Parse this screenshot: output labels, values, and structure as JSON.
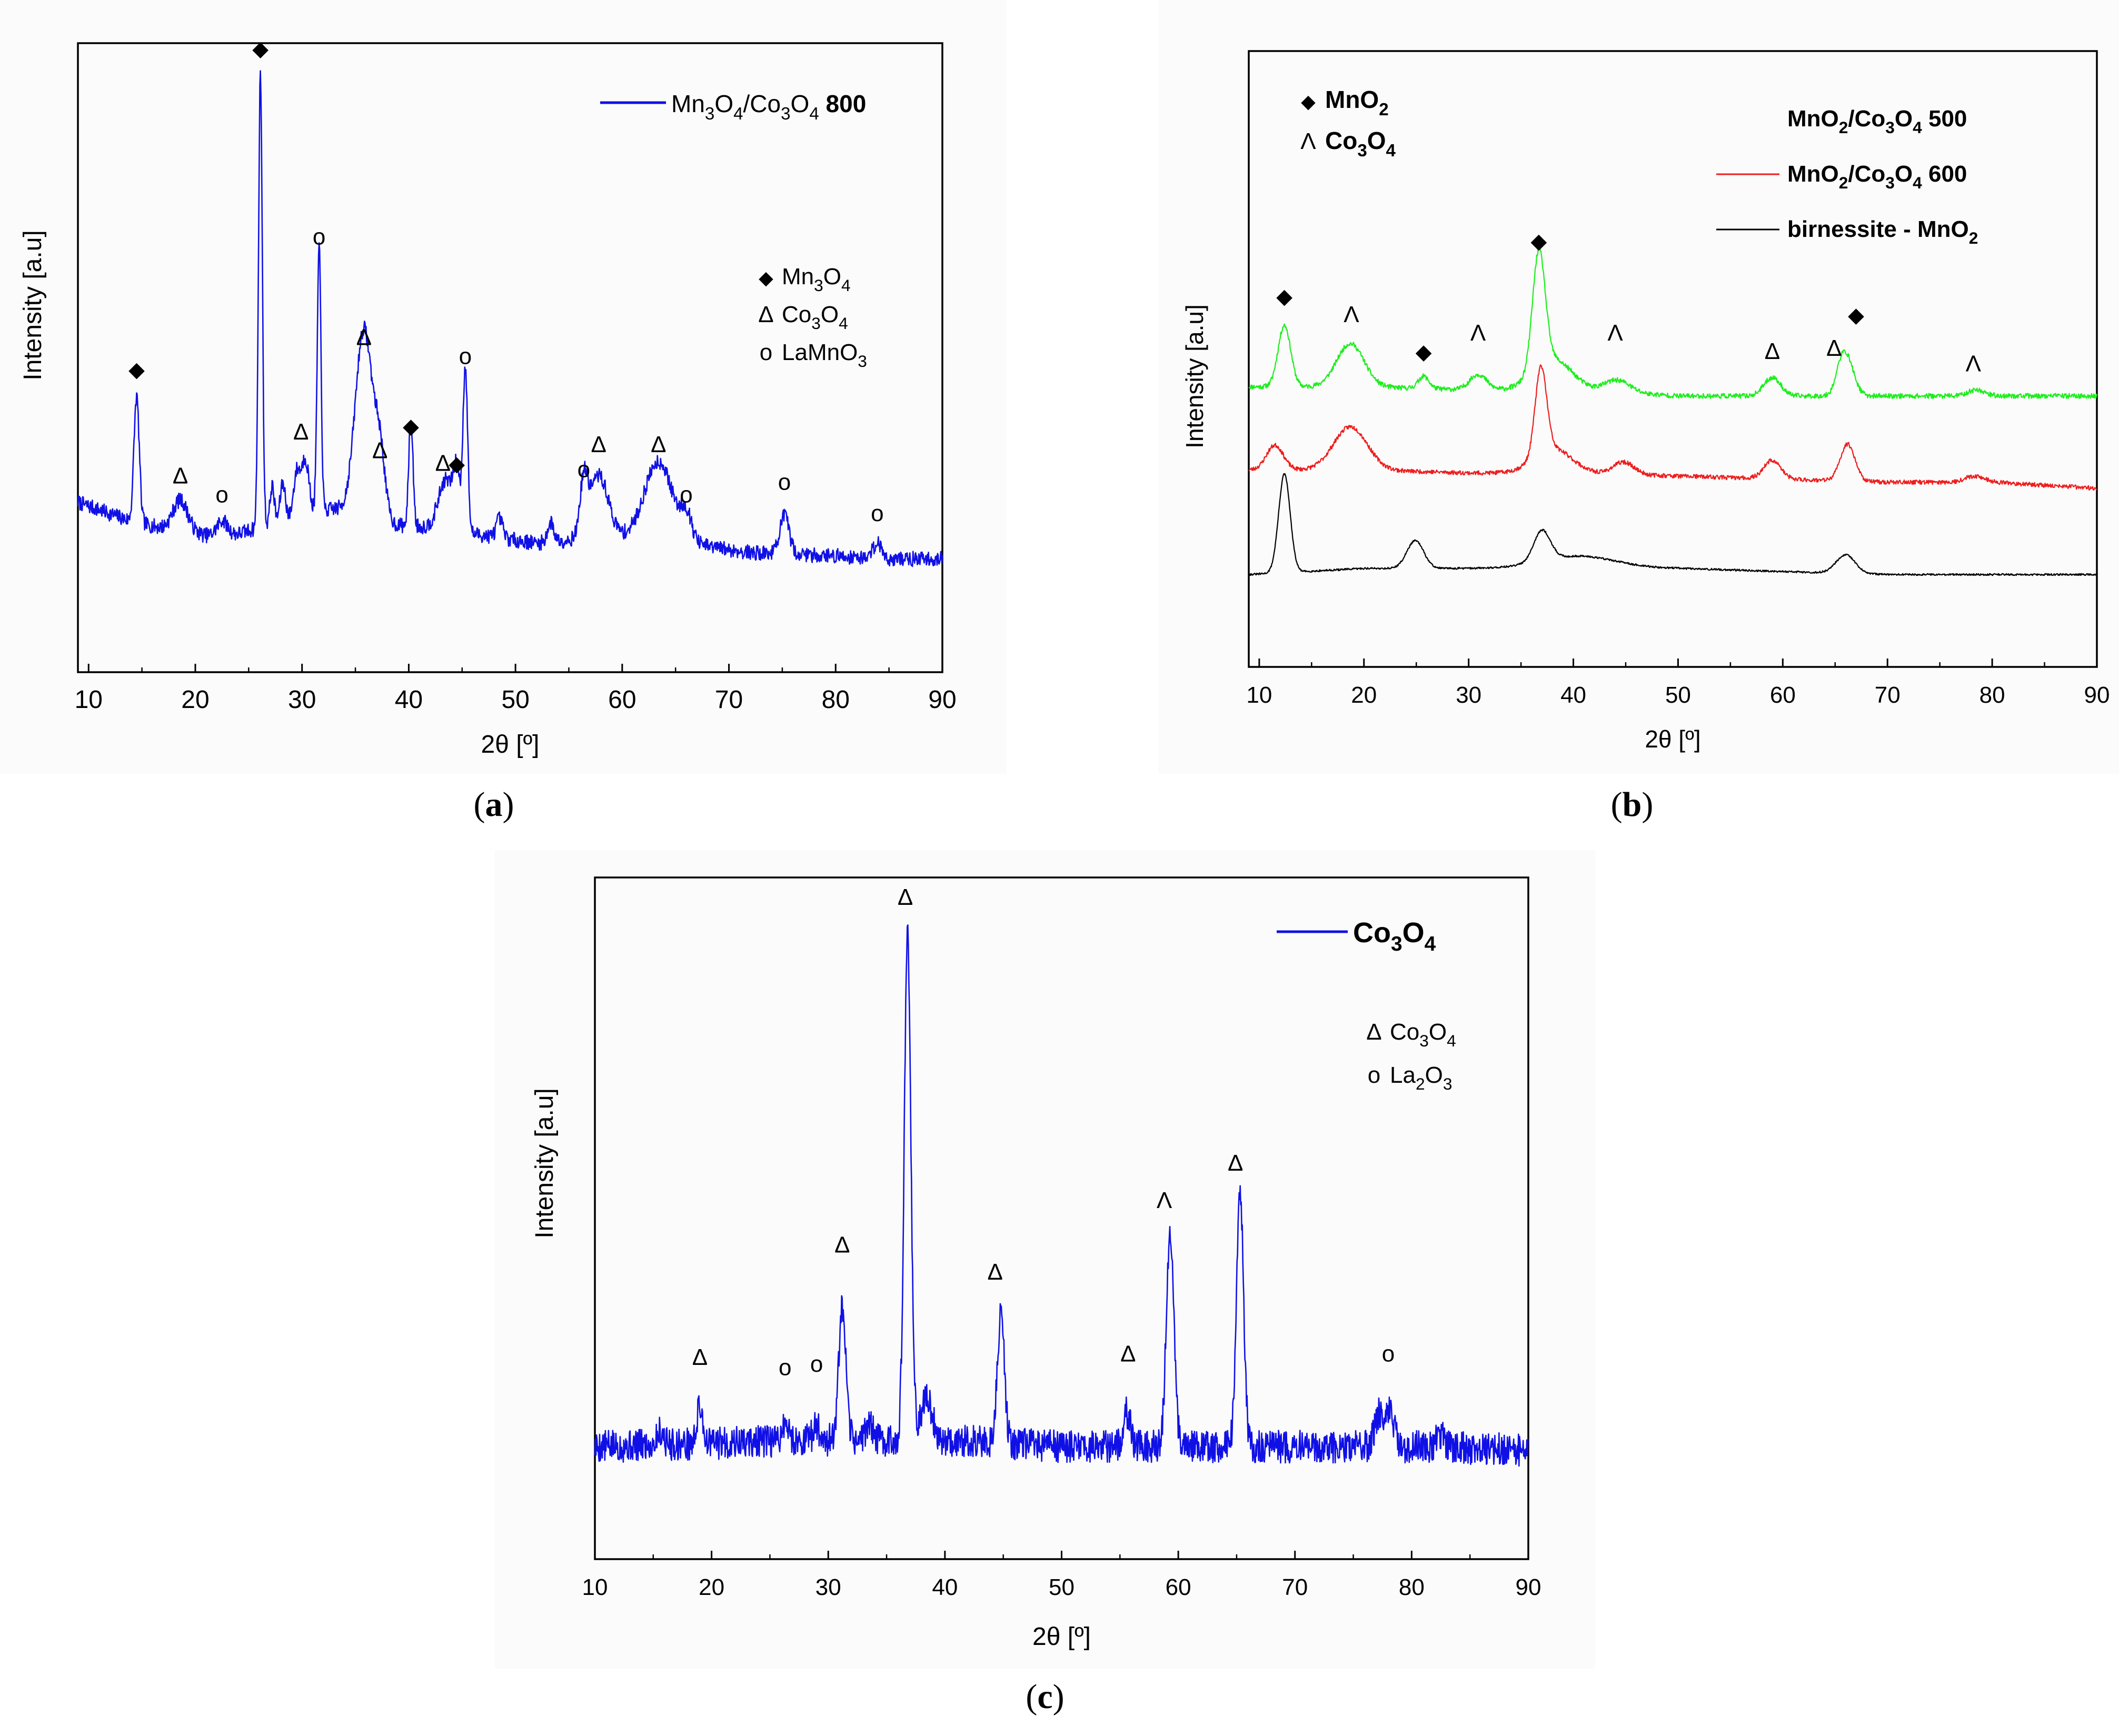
{
  "chart_data": [
    {
      "id": "a",
      "type": "line",
      "panel_label": "a",
      "xlabel": "2θ [º]",
      "ylabel": "Intensity [a.u]",
      "xlim": [
        9,
        90
      ],
      "ylim": [
        0,
        100
      ],
      "xticks": [
        10,
        20,
        30,
        40,
        50,
        60,
        70,
        80,
        90
      ],
      "colors": {
        "series": "#1010e6",
        "axis": "#000000"
      },
      "legend": {
        "position": "top-right",
        "entries": [
          {
            "sub": [
              "Mn",
              "3",
              "O",
              "4",
              "/Co",
              "3",
              "O",
              "4"
            ],
            "bold": " 800",
            "color": "#1010e6"
          }
        ],
        "markers": [
          {
            "symbol": "◆",
            "sub": [
              "Mn",
              "3",
              "O",
              "4"
            ]
          },
          {
            "symbol": "Δ",
            "sub": [
              "Co",
              "3",
              "O",
              "4"
            ]
          },
          {
            "symbol": "o",
            "sub": [
              "LaMnO",
              "3"
            ]
          }
        ]
      },
      "series": [
        {
          "name": "Mn3O4/Co3O4 800",
          "baseline": [
            [
              9,
              27
            ],
            [
              14,
              24
            ],
            [
              18,
              22.5
            ],
            [
              22,
              21.5
            ],
            [
              24,
              22
            ],
            [
              28,
              24
            ],
            [
              33,
              26
            ],
            [
              38,
              23.5
            ],
            [
              42,
              23
            ],
            [
              48,
              21.5
            ],
            [
              52,
              20.5
            ],
            [
              55,
              21
            ],
            [
              60,
              21.5
            ],
            [
              64,
              21.5
            ],
            [
              68,
              20
            ],
            [
              72,
              19
            ],
            [
              80,
              18.5
            ],
            [
              85,
              18
            ],
            [
              90,
              18
            ]
          ],
          "peaks": [
            [
              14.5,
              20,
              0.25
            ],
            [
              18.6,
              5,
              0.7
            ],
            [
              22.5,
              2.5,
              0.5
            ],
            [
              26.1,
              72,
              0.18
            ],
            [
              27.2,
              6,
              0.2
            ],
            [
              28.2,
              6,
              0.25
            ],
            [
              29.5,
              7,
              0.3
            ],
            [
              30.3,
              9,
              0.35
            ],
            [
              31.6,
              42,
              0.18
            ],
            [
              35.8,
              30,
              0.8
            ],
            [
              37.3,
              10,
              0.5
            ],
            [
              40.2,
              17,
              0.2
            ],
            [
              43.5,
              8,
              0.7
            ],
            [
              44.5,
              8,
              0.3
            ],
            [
              45.3,
              26,
              0.22
            ],
            [
              48.5,
              3,
              0.3
            ],
            [
              53.3,
              3,
              0.3
            ],
            [
              56.4,
              8,
              0.35
            ],
            [
              57.8,
              10,
              0.9
            ],
            [
              63.4,
              12,
              1.3
            ],
            [
              66.0,
              4,
              0.5
            ],
            [
              75.2,
              6,
              0.45
            ],
            [
              83.9,
              2.5,
              0.4
            ]
          ],
          "noise": 1.2,
          "seed": 7,
          "step": 0.05
        }
      ],
      "annotations": [
        {
          "symbol": "◆",
          "x": 14.5,
          "y": 47
        },
        {
          "symbol": "Δ",
          "x": 18.6,
          "y": 30
        },
        {
          "symbol": "o",
          "x": 22.5,
          "y": 27
        },
        {
          "symbol": "◆",
          "x": 26.1,
          "y": 98
        },
        {
          "symbol": "Δ",
          "x": 29.9,
          "y": 37
        },
        {
          "symbol": "o",
          "x": 31.6,
          "y": 68
        },
        {
          "symbol": "Δ",
          "x": 35.8,
          "y": 52
        },
        {
          "symbol": "Δ",
          "x": 37.3,
          "y": 34
        },
        {
          "symbol": "◆",
          "x": 40.2,
          "y": 38
        },
        {
          "symbol": "Δ",
          "x": 43.2,
          "y": 32
        },
        {
          "symbol": "◆",
          "x": 44.5,
          "y": 32
        },
        {
          "symbol": "o",
          "x": 45.3,
          "y": 49
        },
        {
          "symbol": "o",
          "x": 56.4,
          "y": 31
        },
        {
          "symbol": "Δ",
          "x": 57.8,
          "y": 35
        },
        {
          "symbol": "Δ",
          "x": 63.4,
          "y": 35
        },
        {
          "symbol": "o",
          "x": 66.0,
          "y": 27
        },
        {
          "symbol": "o",
          "x": 75.2,
          "y": 29
        },
        {
          "symbol": "o",
          "x": 83.9,
          "y": 24
        }
      ]
    },
    {
      "id": "b",
      "type": "line",
      "panel_label": "b",
      "xlabel": "2θ [º]",
      "ylabel": "Intensity [a.u]",
      "xlim": [
        9,
        90
      ],
      "ylim": [
        0,
        100
      ],
      "xticks": [
        10,
        20,
        30,
        40,
        50,
        60,
        70,
        80,
        90
      ],
      "colors": {
        "axis": "#000000"
      },
      "legend": {
        "position": "top-right",
        "markers": [
          {
            "symbol": "◆",
            "sub": [
              "MnO",
              "2"
            ]
          },
          {
            "symbol": "Λ",
            "sub": [
              "Co",
              "3",
              "O",
              "4"
            ]
          }
        ],
        "entries": [
          {
            "sub": [
              "MnO",
              "2",
              "/Co",
              "3",
              "O",
              "4",
              " 500"
            ],
            "color": "#1cee1c",
            "line": false
          },
          {
            "sub": [
              "MnO",
              "2",
              "/Co",
              "3",
              "O",
              "4",
              " 600"
            ],
            "color": "#ee1c1c",
            "line": true
          },
          {
            "sub": [
              "birnessite - MnO",
              "2"
            ],
            "color": "#000000",
            "line": true
          }
        ]
      },
      "series": [
        {
          "name": "MnO2/Co3O4 500",
          "color": "#1cee1c",
          "baseline": [
            [
              9,
              45.5
            ],
            [
              20,
              45.5
            ],
            [
              30,
              45
            ],
            [
              40,
              45
            ],
            [
              50,
              44
            ],
            [
              60,
              44
            ],
            [
              70,
              44
            ],
            [
              80,
              44
            ],
            [
              90,
              44
            ]
          ],
          "peaks": [
            [
              12.4,
              10,
              0.6
            ],
            [
              18.7,
              7,
              1.3
            ],
            [
              25.7,
              2,
              0.5
            ],
            [
              30.9,
              2.5,
              0.8
            ],
            [
              36.7,
              19,
              0.6
            ],
            [
              38.0,
              5,
              1.8
            ],
            [
              44.2,
              2,
              1.2
            ],
            [
              59.0,
              3,
              0.8
            ],
            [
              65.5,
              2,
              0.5
            ],
            [
              66.1,
              6,
              0.7
            ],
            [
              78.5,
              1,
              0.8
            ]
          ],
          "noise": 0.4,
          "seed": 11,
          "step": 0.05
        },
        {
          "name": "MnO2/Co3O4 600",
          "color": "#ee1c1c",
          "baseline": [
            [
              9,
              32
            ],
            [
              20,
              32
            ],
            [
              30,
              31.5
            ],
            [
              40,
              31.5
            ],
            [
              50,
              31
            ],
            [
              60,
              30.5
            ],
            [
              70,
              30
            ],
            [
              80,
              30
            ],
            [
              90,
              29
            ]
          ],
          "peaks": [
            [
              11.5,
              4,
              0.8
            ],
            [
              18.7,
              7,
              1.6
            ],
            [
              36.9,
              14,
              0.55
            ],
            [
              38.0,
              4,
              1.8
            ],
            [
              44.8,
              2,
              1.0
            ],
            [
              59.0,
              3,
              0.8
            ],
            [
              66.2,
              6,
              0.7
            ],
            [
              78.3,
              1,
              0.9
            ]
          ],
          "noise": 0.35,
          "seed": 23,
          "step": 0.05
        },
        {
          "name": "birnessite - MnO2",
          "color": "#000000",
          "baseline": [
            [
              9,
              15
            ],
            [
              20,
              16
            ],
            [
              30,
              16
            ],
            [
              40,
              16
            ],
            [
              50,
              16
            ],
            [
              60,
              15.5
            ],
            [
              70,
              15
            ],
            [
              80,
              15
            ],
            [
              90,
              15
            ]
          ],
          "peaks": [
            [
              12.4,
              16,
              0.55
            ],
            [
              24.9,
              4.5,
              0.8
            ],
            [
              37.0,
              5,
              0.8
            ],
            [
              40.5,
              2,
              3.5
            ],
            [
              66.0,
              3,
              0.9
            ]
          ],
          "noise": 0.15,
          "seed": 31,
          "step": 0.05
        }
      ],
      "annotations": [
        {
          "symbol": "◆",
          "x": 12.4,
          "y": 59
        },
        {
          "symbol": "Λ",
          "x": 18.8,
          "y": 56
        },
        {
          "symbol": "◆",
          "x": 25.7,
          "y": 50
        },
        {
          "symbol": "Λ",
          "x": 30.9,
          "y": 53
        },
        {
          "symbol": "◆",
          "x": 36.7,
          "y": 68
        },
        {
          "symbol": "Λ",
          "x": 44.0,
          "y": 53
        },
        {
          "symbol": "Δ",
          "x": 59.0,
          "y": 50
        },
        {
          "symbol": "Δ",
          "x": 64.9,
          "y": 50.5
        },
        {
          "symbol": "◆",
          "x": 67.0,
          "y": 56
        },
        {
          "symbol": "Λ",
          "x": 78.2,
          "y": 48
        }
      ]
    },
    {
      "id": "c",
      "type": "line",
      "panel_label": "c",
      "xlabel": "2θ [º]",
      "ylabel": "Intensity [a.u]",
      "xlim": [
        10,
        90
      ],
      "ylim": [
        0,
        100
      ],
      "xticks": [
        10,
        20,
        30,
        40,
        50,
        60,
        70,
        80,
        90
      ],
      "colors": {
        "series": "#1010e6",
        "axis": "#000000"
      },
      "legend": {
        "position": "top-right",
        "entries": [
          {
            "sub": [
              "Co",
              "3",
              "O",
              "4"
            ],
            "color": "#1010e6",
            "bold_all": true
          }
        ],
        "markers": [
          {
            "symbol": "Δ",
            "sub": [
              "Co",
              "3",
              "O",
              "4"
            ]
          },
          {
            "symbol": "o",
            "sub": [
              "La",
              "2",
              "O",
              "3"
            ]
          }
        ]
      },
      "series": [
        {
          "name": "Co3O4",
          "baseline": [
            [
              10,
              16.5
            ],
            [
              20,
              17
            ],
            [
              30,
              17.5
            ],
            [
              40,
              17.5
            ],
            [
              50,
              16.5
            ],
            [
              60,
              16.5
            ],
            [
              70,
              16.5
            ],
            [
              80,
              16.5
            ],
            [
              90,
              16
            ]
          ],
          "peaks": [
            [
              15.6,
              2,
              0.3
            ],
            [
              19.0,
              5.5,
              0.25
            ],
            [
              26.3,
              2.5,
              0.3
            ],
            [
              29.0,
              2,
              0.3
            ],
            [
              31.2,
              19,
              0.3
            ],
            [
              33.5,
              2.5,
              0.3
            ],
            [
              36.8,
              74,
              0.28
            ],
            [
              38.4,
              6,
              0.5
            ],
            [
              44.8,
              19,
              0.3
            ],
            [
              55.6,
              5,
              0.3
            ],
            [
              59.3,
              32,
              0.32
            ],
            [
              65.3,
              37,
              0.3
            ],
            [
              77.3,
              5,
              0.4
            ],
            [
              78.2,
              5,
              0.3
            ],
            [
              82.5,
              1.5,
              0.4
            ]
          ],
          "noise": 2.4,
          "seed": 5,
          "step": 0.045
        }
      ],
      "annotations": [
        {
          "symbol": "Δ",
          "x": 19.0,
          "y": 28.5
        },
        {
          "symbol": "o",
          "x": 26.3,
          "y": 27
        },
        {
          "symbol": "o",
          "x": 29.0,
          "y": 27.5
        },
        {
          "symbol": "Δ",
          "x": 31.2,
          "y": 45
        },
        {
          "symbol": "Δ",
          "x": 36.6,
          "y": 96
        },
        {
          "symbol": "Δ",
          "x": 44.3,
          "y": 41
        },
        {
          "symbol": "Δ",
          "x": 55.7,
          "y": 29
        },
        {
          "symbol": "Λ",
          "x": 58.8,
          "y": 51.5
        },
        {
          "symbol": "Δ",
          "x": 64.9,
          "y": 57
        },
        {
          "symbol": "o",
          "x": 78.0,
          "y": 29
        }
      ]
    }
  ]
}
